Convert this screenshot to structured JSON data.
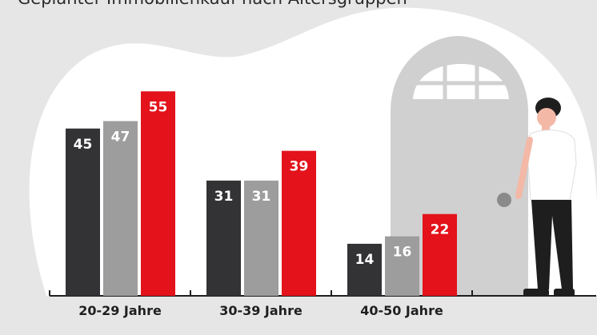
{
  "title": "Geplanter Immobilienkauf nach Altersgruppen",
  "colors": {
    "series_dark": "#333336",
    "series_gray": "#9d9d9d",
    "series_red": "#e3121b",
    "background": "#e6e6e6",
    "blob": "#ffffff",
    "door": "#d0d0d0"
  },
  "chart_data": {
    "type": "bar",
    "title": "Geplanter Immobilienkauf nach Altersgruppen",
    "categories": [
      "20-29 Jahre",
      "30-39 Jahre",
      "40-50 Jahre"
    ],
    "series": [
      {
        "values": [
          45,
          31,
          14
        ],
        "color": "#333336"
      },
      {
        "values": [
          47,
          31,
          16
        ],
        "color": "#9d9d9d"
      },
      {
        "values": [
          55,
          39,
          22
        ],
        "color": "#e3121b"
      }
    ],
    "ylim": [
      0,
      60
    ],
    "grid": false,
    "legend": "none",
    "data_labels": true
  }
}
